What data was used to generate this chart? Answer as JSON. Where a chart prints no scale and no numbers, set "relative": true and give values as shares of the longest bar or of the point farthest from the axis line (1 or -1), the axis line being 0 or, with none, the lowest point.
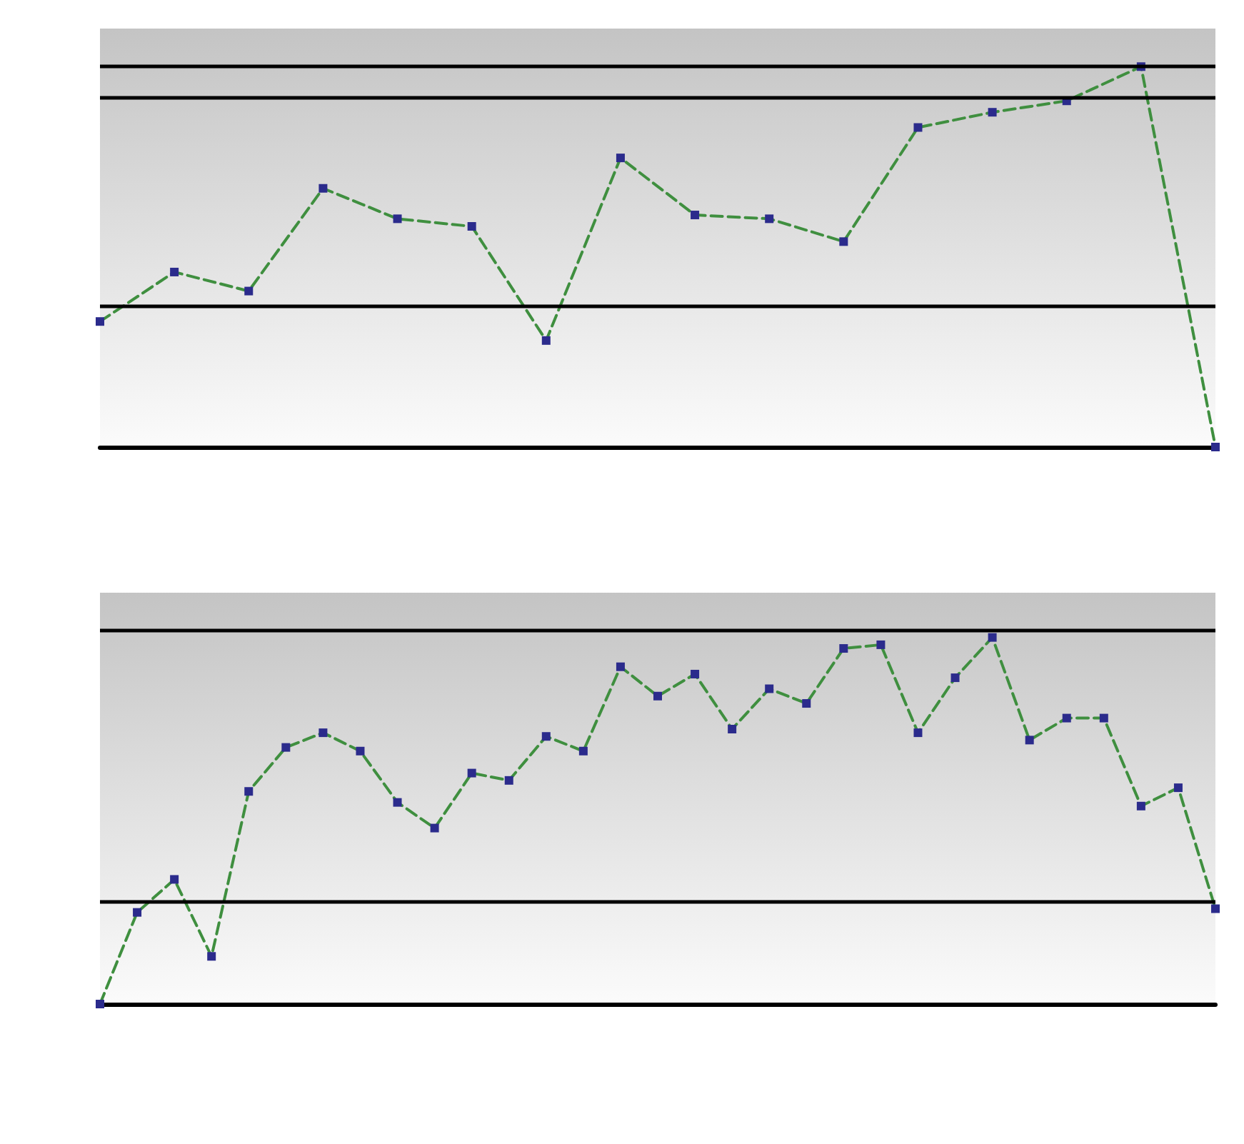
{
  "chart_data": [
    {
      "type": "line",
      "relative": true,
      "categories": [
        null,
        null,
        null,
        null,
        null,
        null,
        null,
        null,
        null,
        null,
        null,
        null,
        null,
        null,
        null,
        null
      ],
      "series": [
        {
          "color": "#3f8f3f",
          "colors": [
            "#2b2b8c",
            "#2b2b8c",
            "#2b2b8c",
            "#2b2b8c",
            "#2b2b8c",
            "#2b2b8c",
            "#2b2b8c",
            "#2b2b8c",
            "#2b2b8c",
            "#2b2b8c",
            "#2b2b8c",
            "#2b2b8c",
            "#2b2b8c",
            "#2b2b8c",
            "#2b2b8c",
            "#2b2b8c"
          ],
          "values": [
            0.33,
            0.46,
            0.41,
            0.68,
            0.6,
            0.58,
            0.28,
            0.76,
            0.61,
            0.6,
            0.54,
            0.84,
            0.88,
            0.91,
            1,
            0
          ]
        }
      ],
      "ref_lines": [
        {
          "axis": "y",
          "value": 1.0,
          "color": "#000000",
          "line_style": "solid"
        },
        {
          "axis": "y",
          "value": 0.92,
          "color": "#000000",
          "line_style": "solid"
        },
        {
          "axis": "y",
          "value": 0.37,
          "color": "#000000",
          "line_style": "solid"
        }
      ],
      "marker": "square",
      "line_style": "dashed",
      "grid": false
    },
    {
      "type": "line",
      "relative": true,
      "categories": [
        null,
        null,
        null,
        null,
        null,
        null,
        null,
        null,
        null,
        null,
        null,
        null,
        null,
        null,
        null,
        null,
        null,
        null,
        null,
        null,
        null,
        null,
        null,
        null,
        null,
        null,
        null,
        null,
        null,
        null,
        null
      ],
      "series": [
        {
          "color": "#3f8f3f",
          "colors": [
            "#2b2b8c",
            "#2b2b8c",
            "#2b2b8c",
            "#2b2b8c",
            "#2b2b8c",
            "#2b2b8c",
            "#2b2b8c",
            "#2b2b8c",
            "#2b2b8c",
            "#2b2b8c",
            "#2b2b8c",
            "#2b2b8c",
            "#2b2b8c",
            "#2b2b8c",
            "#2b2b8c",
            "#2b2b8c",
            "#2b2b8c",
            "#2b2b8c",
            "#2b2b8c",
            "#2b2b8c",
            "#2b2b8c",
            "#2b2b8c",
            "#2b2b8c",
            "#2b2b8c",
            "#2b2b8c",
            "#2b2b8c",
            "#2b2b8c",
            "#2b2b8c",
            "#2b2b8c",
            "#2b2b8c",
            "#2b2b8c"
          ],
          "values": [
            0,
            0.25,
            0.34,
            0.13,
            0.58,
            0.7,
            0.74,
            0.69,
            0.55,
            0.48,
            0.63,
            0.61,
            0.73,
            0.69,
            0.92,
            0.84,
            0.9,
            0.75,
            0.86,
            0.82,
            0.97,
            0.98,
            0.74,
            0.89,
            1,
            0.72,
            0.78,
            0.78,
            0.54,
            0.59,
            0.26
          ]
        }
      ],
      "ref_lines": [
        {
          "axis": "y",
          "value": 1.02,
          "color": "#000000",
          "line_style": "solid"
        },
        {
          "axis": "y",
          "value": 0.28,
          "color": "#000000",
          "line_style": "solid"
        }
      ],
      "marker": "square",
      "line_style": "dashed",
      "grid": false
    }
  ]
}
